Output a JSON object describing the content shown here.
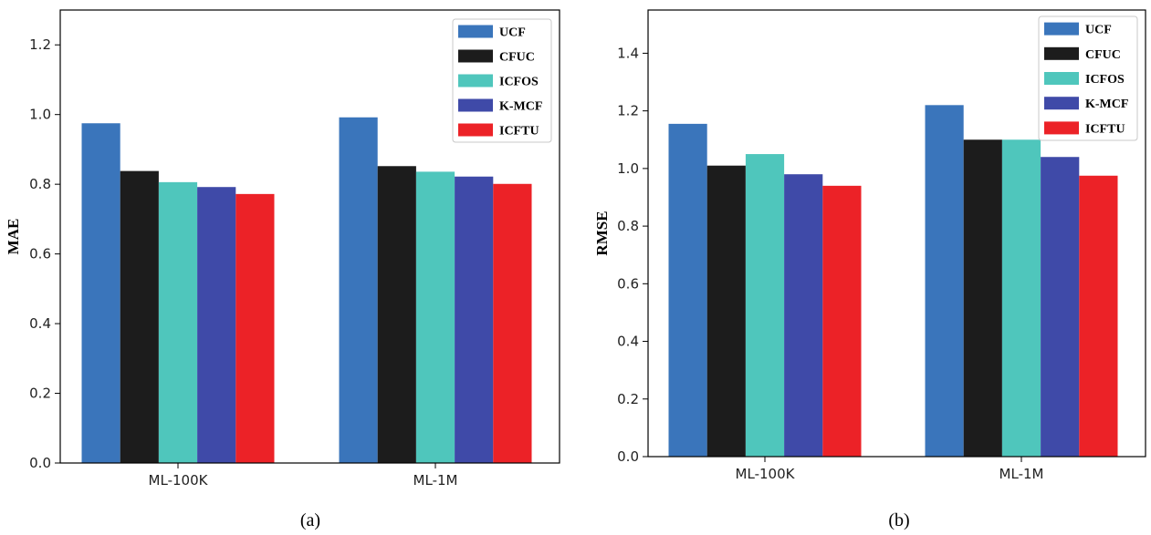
{
  "chart_data": [
    {
      "type": "bar",
      "caption": "(a)",
      "categories": [
        "ML-100K",
        "ML-1M"
      ],
      "series": [
        {
          "name": "UCF",
          "values": [
            0.975,
            0.992
          ]
        },
        {
          "name": "CFUC",
          "values": [
            0.838,
            0.852
          ]
        },
        {
          "name": "ICFOS",
          "values": [
            0.806,
            0.836
          ]
        },
        {
          "name": "K-MCF",
          "values": [
            0.792,
            0.822
          ]
        },
        {
          "name": "ICFTU",
          "values": [
            0.772,
            0.801
          ]
        }
      ],
      "ylabel": "MAE",
      "xlabel": "",
      "ylim": [
        0,
        1.3
      ],
      "yticks": [
        "0.0",
        "0.2",
        "0.4",
        "0.6",
        "0.8",
        "1.0",
        "1.2"
      ],
      "legend_position": "top-right",
      "grid": false
    },
    {
      "type": "bar",
      "caption": "(b)",
      "categories": [
        "ML-100K",
        "ML-1M"
      ],
      "series": [
        {
          "name": "UCF",
          "values": [
            1.155,
            1.22
          ]
        },
        {
          "name": "CFUC",
          "values": [
            1.01,
            1.1
          ]
        },
        {
          "name": "ICFOS",
          "values": [
            1.05,
            1.1
          ]
        },
        {
          "name": "K-MCF",
          "values": [
            0.98,
            1.04
          ]
        },
        {
          "name": "ICFTU",
          "values": [
            0.94,
            0.975
          ]
        }
      ],
      "ylabel": "RMSE",
      "xlabel": "",
      "ylim": [
        0,
        1.55
      ],
      "yticks": [
        "0.0",
        "0.2",
        "0.4",
        "0.6",
        "0.8",
        "1.0",
        "1.2",
        "1.4"
      ],
      "legend_position": "top-right",
      "grid": false
    }
  ],
  "colors": {
    "UCF": "#3a75bb",
    "CFUC": "#1c1c1c",
    "ICFOS": "#4fc6bc",
    "K-MCF": "#3f4aa8",
    "ICFTU": "#ec2227"
  }
}
